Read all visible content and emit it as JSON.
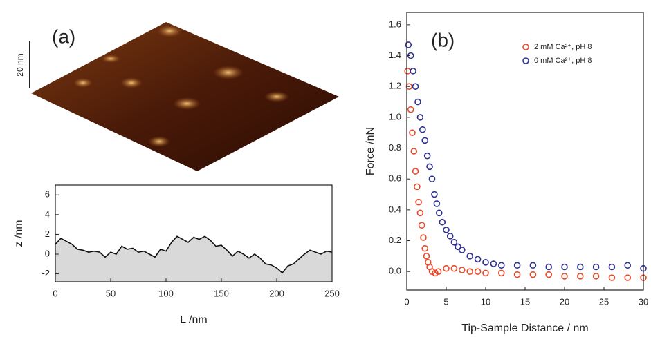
{
  "image": {
    "label": "(a)",
    "scale_bar": "20 nm"
  },
  "chart_data": [
    {
      "type": "line",
      "xlabel": "L /nm",
      "ylabel": "z /nm",
      "xlim": [
        0,
        250
      ],
      "xticks": [
        0,
        50,
        100,
        150,
        200,
        250
      ],
      "ylim": [
        -2.8,
        7
      ],
      "yticks": [
        -2,
        0,
        2,
        4,
        6
      ],
      "fill": "#d9d9d9",
      "series": [
        {
          "color": "#111111",
          "x": [
            0,
            5,
            10,
            15,
            20,
            25,
            30,
            35,
            40,
            45,
            50,
            55,
            60,
            65,
            70,
            75,
            80,
            85,
            90,
            95,
            100,
            105,
            110,
            115,
            120,
            125,
            130,
            135,
            140,
            145,
            150,
            155,
            160,
            165,
            170,
            175,
            180,
            185,
            190,
            195,
            200,
            205,
            210,
            215,
            220,
            225,
            230,
            235,
            240,
            245,
            250
          ],
          "values": [
            1.0,
            1.6,
            1.3,
            1.0,
            0.5,
            0.4,
            0.2,
            0.3,
            0.2,
            -0.3,
            0.2,
            0.0,
            0.8,
            0.5,
            0.6,
            0.2,
            0.3,
            0.0,
            -0.3,
            0.5,
            0.3,
            1.2,
            1.8,
            1.5,
            1.2,
            1.7,
            1.5,
            1.8,
            1.4,
            0.8,
            0.9,
            0.4,
            -0.2,
            0.3,
            0.0,
            -0.4,
            0.0,
            -0.4,
            -1.0,
            -1.1,
            -1.4,
            -1.9,
            -1.2,
            -1.0,
            -0.5,
            0.0,
            0.4,
            0.2,
            0.0,
            0.3,
            0.2
          ]
        }
      ]
    },
    {
      "type": "scatter",
      "label": "(b)",
      "xlabel": "Tip-Sample Distance / nm",
      "ylabel": "Force /nN",
      "xlim": [
        0,
        30
      ],
      "xticks": [
        0,
        5,
        10,
        15,
        20,
        25,
        30
      ],
      "ylim": [
        -0.12,
        1.68
      ],
      "yticks": [
        {
          "value": 0,
          "label": "0.0"
        },
        0.2,
        0.4,
        0.6,
        0.8,
        {
          "value": 1,
          "label": "1.0"
        },
        1.2,
        1.4,
        1.6
      ],
      "legend": "upper right",
      "series": [
        {
          "name": "2 mM Ca²⁺, pH 8",
          "color": "#e8492a",
          "x": [
            0.1,
            0.3,
            0.5,
            0.7,
            0.9,
            1.1,
            1.3,
            1.5,
            1.7,
            1.9,
            2.1,
            2.3,
            2.5,
            2.7,
            2.9,
            3.2,
            3.6,
            4,
            5,
            6,
            7,
            8,
            9,
            10,
            12,
            14,
            16,
            18,
            20,
            22,
            24,
            26,
            28,
            30
          ],
          "values": [
            1.3,
            1.2,
            1.05,
            0.9,
            0.78,
            0.65,
            0.55,
            0.45,
            0.38,
            0.3,
            0.22,
            0.15,
            0.1,
            0.06,
            0.03,
            0.0,
            -0.01,
            0.0,
            0.02,
            0.02,
            0.01,
            0.0,
            0.0,
            -0.01,
            -0.01,
            -0.02,
            -0.02,
            -0.02,
            -0.03,
            -0.03,
            -0.03,
            -0.04,
            -0.04,
            -0.04
          ]
        },
        {
          "name": "0 mM Ca²⁺, pH 8",
          "color": "#2e3192",
          "x": [
            0.2,
            0.5,
            0.8,
            1.1,
            1.4,
            1.7,
            2.0,
            2.3,
            2.6,
            2.9,
            3.2,
            3.5,
            3.8,
            4.1,
            4.5,
            5,
            5.5,
            6,
            6.5,
            7,
            8,
            9,
            10,
            11,
            12,
            14,
            16,
            18,
            20,
            22,
            24,
            26,
            28,
            30
          ],
          "values": [
            1.47,
            1.4,
            1.3,
            1.2,
            1.1,
            1.0,
            0.92,
            0.85,
            0.75,
            0.68,
            0.6,
            0.5,
            0.44,
            0.38,
            0.32,
            0.27,
            0.23,
            0.19,
            0.16,
            0.14,
            0.1,
            0.08,
            0.06,
            0.05,
            0.04,
            0.04,
            0.04,
            0.03,
            0.03,
            0.03,
            0.03,
            0.03,
            0.04,
            0.02
          ]
        }
      ]
    }
  ]
}
